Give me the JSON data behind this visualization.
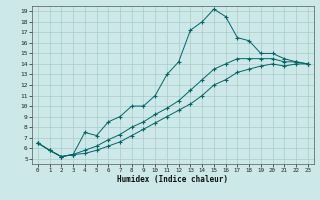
{
  "xlabel": "Humidex (Indice chaleur)",
  "bg_color": "#cce8e8",
  "grid_color": "#aacccc",
  "line_color": "#006666",
  "xlim": [
    -0.5,
    23.5
  ],
  "ylim": [
    4.5,
    19.5
  ],
  "xticks": [
    0,
    1,
    2,
    3,
    4,
    5,
    6,
    7,
    8,
    9,
    10,
    11,
    12,
    13,
    14,
    15,
    16,
    17,
    18,
    19,
    20,
    21,
    22,
    23
  ],
  "yticks": [
    5,
    6,
    7,
    8,
    9,
    10,
    11,
    12,
    13,
    14,
    15,
    16,
    17,
    18,
    19
  ],
  "line1_x": [
    0,
    1,
    2,
    3,
    4,
    5,
    6,
    7,
    8,
    9,
    10,
    11,
    12,
    13,
    14,
    15,
    16,
    17,
    18,
    19,
    20,
    21,
    22,
    23
  ],
  "line1_y": [
    6.5,
    5.8,
    5.2,
    5.4,
    7.5,
    7.2,
    8.5,
    9.0,
    10.0,
    10.0,
    11.0,
    13.0,
    14.2,
    17.2,
    18.0,
    19.2,
    18.5,
    16.5,
    16.2,
    15.0,
    15.0,
    14.5,
    14.2,
    14.0
  ],
  "line2_x": [
    0,
    1,
    2,
    3,
    4,
    5,
    6,
    7,
    8,
    9,
    10,
    11,
    12,
    13,
    14,
    15,
    16,
    17,
    18,
    19,
    20,
    21,
    22,
    23
  ],
  "line2_y": [
    6.5,
    5.8,
    5.2,
    5.4,
    5.8,
    6.2,
    6.8,
    7.3,
    8.0,
    8.5,
    9.2,
    9.8,
    10.5,
    11.5,
    12.5,
    13.5,
    14.0,
    14.5,
    14.5,
    14.5,
    14.5,
    14.2,
    14.2,
    14.0
  ],
  "line3_x": [
    0,
    1,
    2,
    3,
    4,
    5,
    6,
    7,
    8,
    9,
    10,
    11,
    12,
    13,
    14,
    15,
    16,
    17,
    18,
    19,
    20,
    21,
    22,
    23
  ],
  "line3_y": [
    6.5,
    5.8,
    5.2,
    5.4,
    5.5,
    5.8,
    6.2,
    6.6,
    7.2,
    7.8,
    8.4,
    9.0,
    9.6,
    10.2,
    11.0,
    12.0,
    12.5,
    13.2,
    13.5,
    13.8,
    14.0,
    13.8,
    14.0,
    14.0
  ]
}
